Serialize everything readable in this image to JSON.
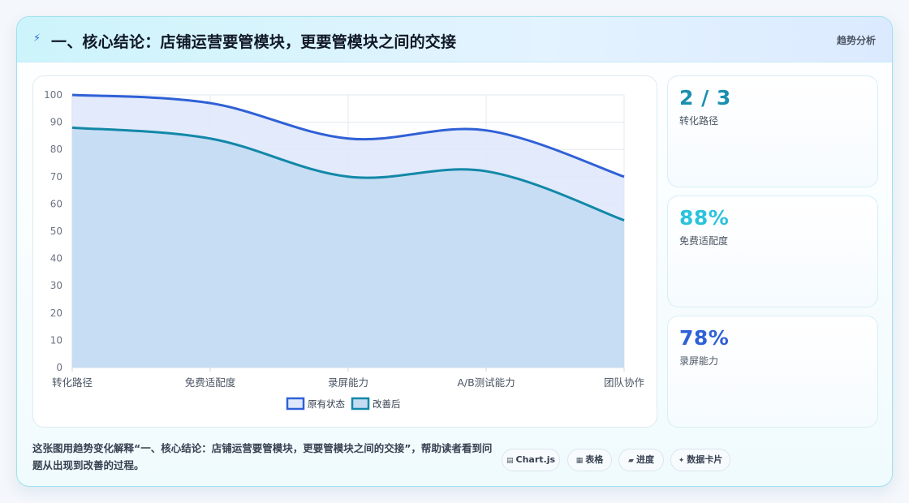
{
  "header": {
    "title": "一、核心结论：店铺运营要管模块，更要管模块之间的交接",
    "tag": "趋势分析"
  },
  "chart_data": {
    "type": "area",
    "categories": [
      "转化路径",
      "免费适配度",
      "录屏能力",
      "A/B测试能力",
      "团队协作"
    ],
    "series": [
      {
        "name": "原有状态",
        "values": [
          100,
          97,
          84,
          87,
          70
        ],
        "color": "#2f60d6",
        "fill": "#dfe8fb"
      },
      {
        "name": "改善后",
        "values": [
          88,
          84,
          70,
          72,
          54
        ],
        "color": "#1288a8",
        "fill": "#c4dcf2"
      }
    ],
    "ylim": [
      0,
      100
    ],
    "yticks": [
      "0",
      "10",
      "20",
      "30",
      "40",
      "50",
      "60",
      "70",
      "80",
      "90",
      "100"
    ],
    "grid": true,
    "legend_position": "bottom"
  },
  "kpis": [
    {
      "value": "2 / 3",
      "label": "转化路径",
      "color": "#1a8fb0"
    },
    {
      "value": "88%",
      "label": "免费适配度",
      "color": "#2bc3dc"
    },
    {
      "value": "78%",
      "label": "录屏能力",
      "color": "#2f60d6"
    }
  ],
  "footer": {
    "description": "这张图用趋势变化解释“一、核心结论：店铺运营要管模块，更要管模块之间的交接”，帮助读者看到问题从出现到改善的过程。"
  },
  "pills": [
    {
      "icon": "▤",
      "label": "Chart.js"
    },
    {
      "icon": "▦",
      "label": "表格"
    },
    {
      "icon": "▰",
      "label": "进度"
    },
    {
      "icon": "✦",
      "label": "数据卡片"
    }
  ]
}
